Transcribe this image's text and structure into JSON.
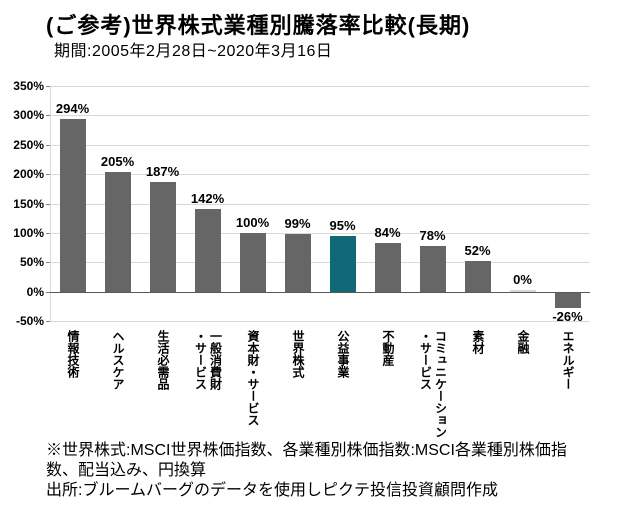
{
  "header": {
    "title": "(ご参考)世界株式業種別騰落率比較(長期)",
    "subtitle": "期間:2005年2月28日~2020年3月16日"
  },
  "chart_data": {
    "type": "bar",
    "title": "(ご参考)世界株式業種別騰落率比較(長期)",
    "period": "期間:2005年2月28日~2020年3月16日",
    "categories": [
      "情報技術",
      "ヘルスケア",
      "生活必需品",
      "一般消費財\n・サービス",
      "資本財・サービス",
      "世界株式",
      "公益事業",
      "不動産",
      "コミュニケーション\n・サービス",
      "素材",
      "金融",
      "エネルギー"
    ],
    "values": [
      294,
      205,
      187,
      142,
      100,
      99,
      95,
      84,
      78,
      52,
      0,
      -26
    ],
    "value_labels": [
      "294%",
      "205%",
      "187%",
      "142%",
      "100%",
      "99%",
      "95%",
      "84%",
      "78%",
      "52%",
      "0%",
      "-26%"
    ],
    "highlight_index": 6,
    "highlight_category": "公益事業",
    "bar_color": "#666666",
    "highlight_color": "#106976",
    "zero_bar_color": "#d6d6d6",
    "grid_color": "#d9d9d9",
    "zero_line_color": "#595959",
    "tick_mark_color": "#808080",
    "ylim": [
      -50,
      350
    ],
    "ytick_step": 50,
    "ytick_labels": [
      "350%",
      "300%",
      "250%",
      "200%",
      "150%",
      "100%",
      "50%",
      "0%",
      "-50%"
    ],
    "grid": true,
    "legend": "none"
  },
  "footer": {
    "note": "※世界株式:MSCI世界株価指数、各業種別株価指数:MSCI各業種別株価指数、配当込み、円換算",
    "source": "出所:ブルームバーグのデータを使用しピクテ投信投資顧問作成"
  }
}
